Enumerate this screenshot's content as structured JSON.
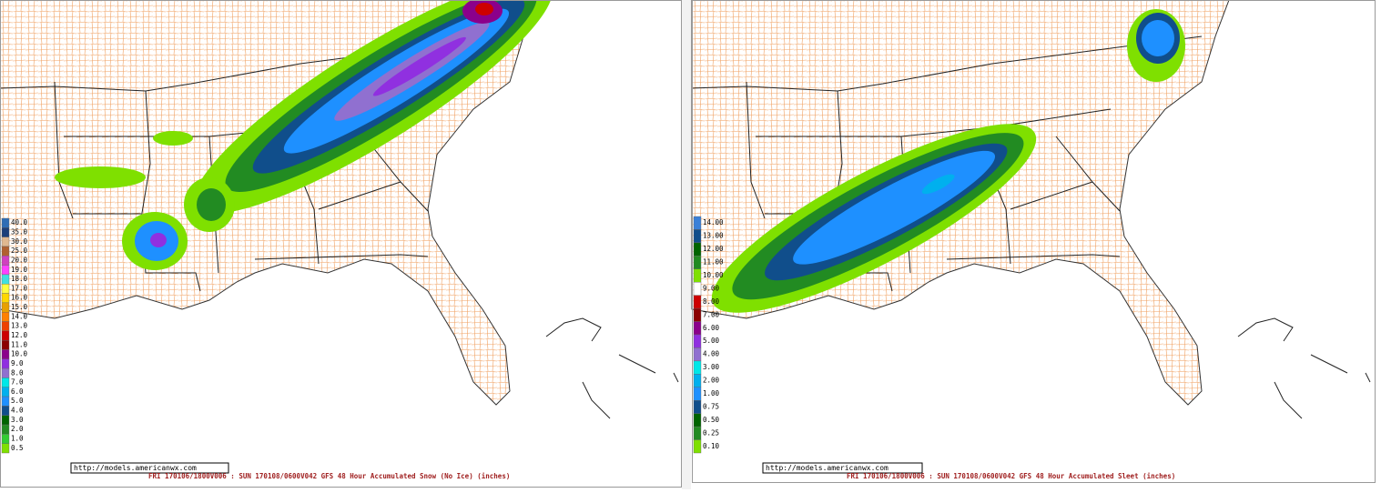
{
  "left_map": {
    "url": "http://models.americanwx.com",
    "caption": "FRI 170106/1800V006 : SUN 170108/0600V042  GFS 48 Hour Accumulated Snow (No Ice) (inches)",
    "legend": [
      {
        "label": "40.0",
        "color": "#2f6db5"
      },
      {
        "label": "35.0",
        "color": "#1c3f7a"
      },
      {
        "label": "30.0",
        "color": "#e0b890"
      },
      {
        "label": "25.0",
        "color": "#b06030"
      },
      {
        "label": "20.0",
        "color": "#d040c0"
      },
      {
        "label": "19.0",
        "color": "#ff40ff"
      },
      {
        "label": "18.0",
        "color": "#40e0e0"
      },
      {
        "label": "17.0",
        "color": "#ffff40"
      },
      {
        "label": "16.0",
        "color": "#ffd700"
      },
      {
        "label": "15.0",
        "color": "#e8a000"
      },
      {
        "label": "14.0",
        "color": "#ff8000"
      },
      {
        "label": "13.0",
        "color": "#ee4000"
      },
      {
        "label": "12.0",
        "color": "#cd0000"
      },
      {
        "label": "11.0",
        "color": "#8b0000"
      },
      {
        "label": "10.0",
        "color": "#8b008b"
      },
      {
        "label": "9.0",
        "color": "#9030e0"
      },
      {
        "label": "8.0",
        "color": "#9070d0"
      },
      {
        "label": "7.0",
        "color": "#00e8e8"
      },
      {
        "label": "6.0",
        "color": "#00b0ee"
      },
      {
        "label": "5.0",
        "color": "#1e90ff"
      },
      {
        "label": "4.0",
        "color": "#104e8b"
      },
      {
        "label": "3.0",
        "color": "#006400"
      },
      {
        "label": "2.0",
        "color": "#228b22"
      },
      {
        "label": "1.0",
        "color": "#32cd32"
      },
      {
        "label": "0.5",
        "color": "#7fe000"
      }
    ]
  },
  "right_map": {
    "url": "http://models.americanwx.com",
    "caption": "FRI 170106/1800V006 : SUN 170108/0600V042  GFS 48 Hour Accumulated Sleet (inches)",
    "legend": [
      {
        "label": "14.00",
        "color": "#3a80d8"
      },
      {
        "label": "13.00",
        "color": "#104e8b"
      },
      {
        "label": "12.00",
        "color": "#006400"
      },
      {
        "label": "11.00",
        "color": "#228b22"
      },
      {
        "label": "10.00",
        "color": "#7fe000"
      },
      {
        "label": "9.00",
        "color": "#ffffff"
      },
      {
        "label": "8.00",
        "color": "#cd0000"
      },
      {
        "label": "7.00",
        "color": "#8b0000"
      },
      {
        "label": "6.00",
        "color": "#8b008b"
      },
      {
        "label": "5.00",
        "color": "#9030e0"
      },
      {
        "label": "4.00",
        "color": "#9070d0"
      },
      {
        "label": "3.00",
        "color": "#00e8e8"
      },
      {
        "label": "2.00",
        "color": "#00b0ee"
      },
      {
        "label": "1.00",
        "color": "#1e90ff"
      },
      {
        "label": "0.75",
        "color": "#104e8b"
      },
      {
        "label": "0.50",
        "color": "#006400"
      },
      {
        "label": "0.25",
        "color": "#228b22"
      },
      {
        "label": "0.10",
        "color": "#7fe000"
      }
    ]
  }
}
